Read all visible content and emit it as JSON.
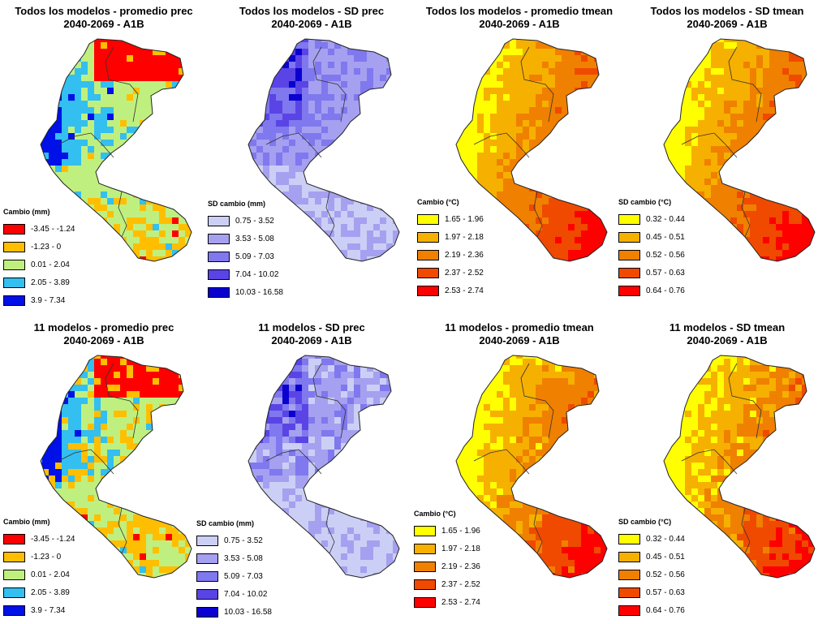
{
  "panels": [
    {
      "title1": "Todos los modelos - promedio prec",
      "title2": "2040-2069 - A1B",
      "legend_title": "Cambio (mm)",
      "palette": "prec",
      "classes": [
        "-3.45 - -1.24",
        "-1.23 - 0",
        "0.01 - 2.04",
        "2.05 - 3.89",
        "3.9 - 7.34"
      ],
      "colors": [
        "#ff0000",
        "#ffbf00",
        "#bff07f",
        "#33bfef",
        "#0010e8"
      ]
    },
    {
      "title1": "Todos los modelos - SD prec",
      "title2": "2040-2069 - A1B",
      "legend_title": "SD cambio (mm)",
      "palette": "sdprec",
      "classes": [
        "0.75 - 3.52",
        "3.53 - 5.08",
        "5.09 - 7.03",
        "7.04 - 10.02",
        "10.03 - 16.58"
      ],
      "colors": [
        "#cccff5",
        "#a6a0f0",
        "#7f78ee",
        "#5a44e6",
        "#0a00d0"
      ]
    },
    {
      "title1": "Todos los modelos - promedio tmean",
      "title2": "2040-2069 - A1B",
      "legend_title": "Cambio (°C)",
      "palette": "temp",
      "classes": [
        "1.65 - 1.96",
        "1.97 - 2.18",
        "2.19 - 2.36",
        "2.37 - 2.52",
        "2.53 - 2.74"
      ],
      "colors": [
        "#ffff00",
        "#f6b000",
        "#f08000",
        "#ef4a00",
        "#ff0000"
      ]
    },
    {
      "title1": "Todos los modelos - SD tmean",
      "title2": "2040-2069 - A1B",
      "legend_title": "SD cambio (°C)",
      "palette": "temp",
      "classes": [
        "0.32 - 0.44",
        "0.45 - 0.51",
        "0.52 - 0.56",
        "0.57 - 0.63",
        "0.64 - 0.76"
      ],
      "colors": [
        "#ffff00",
        "#f6b000",
        "#f08000",
        "#ef4a00",
        "#ff0000"
      ]
    },
    {
      "title1": "11 modelos - promedio prec",
      "title2": "2040-2069 - A1B",
      "legend_title": "Cambio (mm)",
      "palette": "prec",
      "classes": [
        "-3.45 - -1.24",
        "-1.23 - 0",
        "0.01 - 2.04",
        "2.05 - 3.89",
        "3.9 - 7.34"
      ],
      "colors": [
        "#ff0000",
        "#ffbf00",
        "#bff07f",
        "#33bfef",
        "#0010e8"
      ]
    },
    {
      "title1": "11 modelos - SD prec",
      "title2": "2040-2069 - A1B",
      "legend_title": "SD cambio (mm)",
      "palette": "sdprec",
      "classes": [
        "0.75 - 3.52",
        "3.53 - 5.08",
        "5.09 - 7.03",
        "7.04 - 10.02",
        "10.03 - 16.58"
      ],
      "colors": [
        "#cccff5",
        "#a6a0f0",
        "#7f78ee",
        "#5a44e6",
        "#0a00d0"
      ]
    },
    {
      "title1": "11 modelos - promedio tmean",
      "title2": "2040-2069 - A1B",
      "legend_title": "Cambio (°C)",
      "palette": "temp",
      "classes": [
        "1.65 - 1.96",
        "1.97 - 2.18",
        "2.19 - 2.36",
        "2.37 - 2.52",
        "2.53 - 2.74"
      ],
      "colors": [
        "#ffff00",
        "#f6b000",
        "#f08000",
        "#ef4a00",
        "#ff0000"
      ]
    },
    {
      "title1": "11 modelos - SD tmean",
      "title2": "2040-2069 - A1B",
      "legend_title": "SD cambio (°C)",
      "palette": "temp",
      "classes": [
        "0.32 - 0.44",
        "0.45 - 0.51",
        "0.52 - 0.56",
        "0.57 - 0.63",
        "0.64 - 0.76"
      ],
      "colors": [
        "#ffff00",
        "#f6b000",
        "#f08000",
        "#ef4a00",
        "#ff0000"
      ]
    }
  ]
}
